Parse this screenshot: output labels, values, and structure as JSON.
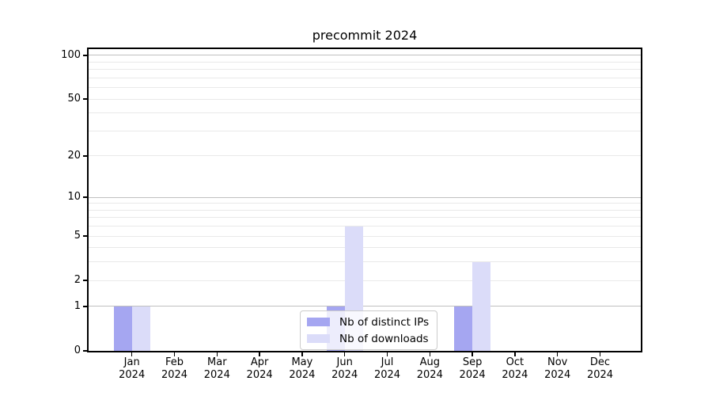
{
  "chart_data": {
    "type": "bar",
    "title": "precommit 2024",
    "xlabel": "",
    "ylabel": "",
    "y_scale": "log1p",
    "ylim": [
      0,
      110
    ],
    "grid": "horizontal",
    "y_ticks": [
      100,
      50,
      20,
      10,
      5,
      2,
      1,
      0
    ],
    "categories": [
      {
        "label": "Jan",
        "sub": "2024"
      },
      {
        "label": "Feb",
        "sub": "2024"
      },
      {
        "label": "Mar",
        "sub": "2024"
      },
      {
        "label": "Apr",
        "sub": "2024"
      },
      {
        "label": "May",
        "sub": "2024"
      },
      {
        "label": "Jun",
        "sub": "2024"
      },
      {
        "label": "Jul",
        "sub": "2024"
      },
      {
        "label": "Aug",
        "sub": "2024"
      },
      {
        "label": "Sep",
        "sub": "2024"
      },
      {
        "label": "Oct",
        "sub": "2024"
      },
      {
        "label": "Nov",
        "sub": "2024"
      },
      {
        "label": "Dec",
        "sub": "2024"
      }
    ],
    "series": [
      {
        "name": "Nb of distinct IPs",
        "color": "#a5a6f1",
        "values": [
          1,
          0,
          0,
          0,
          0,
          1,
          0,
          0,
          1,
          0,
          0,
          0
        ]
      },
      {
        "name": "Nb of downloads",
        "color": "#dbdcf9",
        "values": [
          1,
          0,
          0,
          0,
          0,
          6,
          0,
          0,
          3,
          0,
          0,
          0
        ]
      }
    ],
    "legend_position": "lower center (inside plot)",
    "colors": {
      "major_grid": "#c0c0c0",
      "minor_grid": "#e9e9e9",
      "spine": "#000000",
      "legend_border": "#cccccc"
    }
  }
}
